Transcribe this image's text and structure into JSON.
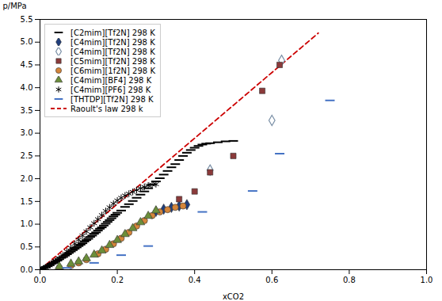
{
  "chart_data": {
    "type": "scatter",
    "xlabel": "xCO2",
    "ylabel": "p/MPa",
    "xlim": [
      0.0,
      1.0
    ],
    "ylim": [
      0.0,
      5.5
    ],
    "xticks": [
      {
        "value": 0,
        "label": "0.0"
      },
      0.2,
      0.4,
      0.6,
      0.8,
      {
        "value": 1,
        "label": "1.0"
      }
    ],
    "yticks": [
      {
        "value": 0,
        "label": "0.0"
      },
      0.5,
      {
        "value": 1,
        "label": "1.0"
      },
      1.5,
      {
        "value": 2,
        "label": "2.0"
      },
      2.5,
      {
        "value": 3,
        "label": "3.0"
      },
      3.5,
      {
        "value": 4,
        "label": "4.0"
      },
      4.5,
      {
        "value": 5,
        "label": "5.0"
      },
      5.5
    ],
    "grid": false,
    "legend": "upper left",
    "series": [
      {
        "name": "[C2mim][Tf2N] 298 K",
        "type": "scatter",
        "marker": "dash",
        "color": "#000000",
        "x": [
          0.005,
          0.01,
          0.015,
          0.02,
          0.025,
          0.03,
          0.035,
          0.04,
          0.045,
          0.05,
          0.055,
          0.06,
          0.065,
          0.07,
          0.075,
          0.08,
          0.085,
          0.09,
          0.095,
          0.1,
          0.105,
          0.11,
          0.115,
          0.12,
          0.125,
          0.13,
          0.135,
          0.14,
          0.145,
          0.15,
          0.155,
          0.16,
          0.165,
          0.17,
          0.175,
          0.18,
          0.185,
          0.19,
          0.195,
          0.2,
          0.21,
          0.22,
          0.23,
          0.24,
          0.25,
          0.26,
          0.27,
          0.28,
          0.29,
          0.3,
          0.31,
          0.32,
          0.33,
          0.34,
          0.35,
          0.36,
          0.37,
          0.38,
          0.39,
          0.4,
          0.41,
          0.42,
          0.43,
          0.44,
          0.46,
          0.48,
          0.5
        ],
        "values": [
          0.02,
          0.04,
          0.06,
          0.08,
          0.1,
          0.13,
          0.15,
          0.18,
          0.2,
          0.23,
          0.26,
          0.28,
          0.31,
          0.34,
          0.37,
          0.4,
          0.43,
          0.46,
          0.49,
          0.52,
          0.55,
          0.58,
          0.62,
          0.65,
          0.68,
          0.72,
          0.75,
          0.79,
          0.82,
          0.86,
          0.9,
          0.93,
          0.97,
          1.01,
          1.05,
          1.09,
          1.13,
          1.17,
          1.21,
          1.25,
          1.3,
          1.38,
          1.44,
          1.51,
          1.58,
          1.65,
          1.72,
          1.79,
          1.87,
          1.94,
          2.01,
          2.09,
          2.17,
          2.25,
          2.32,
          2.41,
          2.5,
          2.57,
          2.63,
          2.68,
          2.72,
          2.75,
          2.77,
          2.78,
          2.8,
          2.82,
          2.83
        ]
      },
      {
        "name": "[C4mim][Tf2N] 298 K",
        "type": "scatter",
        "marker": "diamond",
        "color": "#1F3E7D",
        "x": [
          0.3,
          0.32,
          0.34,
          0.36,
          0.38
        ],
        "values": [
          1.28,
          1.33,
          1.37,
          1.4,
          1.43
        ]
      },
      {
        "name": "[C4mim][Tf2N] 298 K",
        "type": "scatter",
        "marker": "open_diamond",
        "color": "#7A8FA6",
        "x": [
          0.44,
          0.6,
          0.625
        ],
        "values": [
          2.19,
          3.28,
          4.6
        ]
      },
      {
        "name": "[C5mim][Tf2N] 298 K",
        "type": "scatter",
        "marker": "square",
        "color": "#8B3A3A",
        "x": [
          0.36,
          0.4,
          0.44,
          0.5,
          0.575,
          0.62
        ],
        "values": [
          1.55,
          1.72,
          2.14,
          2.5,
          3.93,
          4.5
        ]
      },
      {
        "name": "[C6mim][1f2N] 298 K",
        "type": "scatter",
        "marker": "circle",
        "color": "#D4853A",
        "x": [
          0.05,
          0.08,
          0.1,
          0.12,
          0.15,
          0.17,
          0.19,
          0.21,
          0.23,
          0.25,
          0.27,
          0.29,
          0.31,
          0.33,
          0.35,
          0.37
        ],
        "values": [
          0.04,
          0.09,
          0.15,
          0.22,
          0.35,
          0.45,
          0.57,
          0.69,
          0.82,
          0.96,
          1.08,
          1.19,
          1.27,
          1.32,
          1.37,
          1.4
        ]
      },
      {
        "name": "[C4mim][BF4] 298 K",
        "type": "scatter",
        "marker": "triangle",
        "color": "#6B8E3A",
        "x": [
          0.05,
          0.08,
          0.1,
          0.12,
          0.14,
          0.16,
          0.18,
          0.2,
          0.22,
          0.24,
          0.26,
          0.28,
          0.3
        ],
        "values": [
          0.07,
          0.13,
          0.18,
          0.25,
          0.33,
          0.42,
          0.54,
          0.65,
          0.78,
          0.91,
          1.04,
          1.18,
          1.3
        ]
      },
      {
        "name": "[C4mim][PF6] 298 K",
        "type": "scatter",
        "marker": "asterisk",
        "color": "#000000",
        "x": [
          0.005,
          0.01,
          0.015,
          0.02,
          0.025,
          0.03,
          0.035,
          0.04,
          0.05,
          0.06,
          0.07,
          0.08,
          0.09,
          0.1,
          0.11,
          0.12,
          0.13,
          0.14,
          0.15,
          0.16,
          0.17,
          0.18,
          0.19,
          0.2,
          0.21,
          0.22,
          0.23,
          0.24,
          0.25,
          0.26,
          0.27,
          0.28,
          0.29,
          0.3
        ],
        "values": [
          0.01,
          0.03,
          0.05,
          0.07,
          0.1,
          0.13,
          0.16,
          0.19,
          0.25,
          0.32,
          0.4,
          0.48,
          0.57,
          0.66,
          0.75,
          0.84,
          0.93,
          1.02,
          1.11,
          1.2,
          1.29,
          1.37,
          1.45,
          1.52,
          1.58,
          1.63,
          1.67,
          1.71,
          1.75,
          1.79,
          1.82,
          1.85,
          1.87,
          1.88
        ]
      },
      {
        "name": "[THTDP][Tf2N] 298 K",
        "type": "scatter",
        "marker": "dash",
        "color": "#4472C4",
        "x": [
          0.07,
          0.14,
          0.21,
          0.28,
          0.42,
          0.55,
          0.62,
          0.75
        ],
        "values": [
          0.04,
          0.15,
          0.32,
          0.52,
          1.27,
          1.73,
          2.55,
          3.72
        ]
      },
      {
        "name": "Raoult's law 298 k",
        "type": "line",
        "line_style": "dashed",
        "color": "#CC0000",
        "x": [
          0.0,
          0.72
        ],
        "values": [
          0.0,
          5.2
        ]
      }
    ]
  }
}
